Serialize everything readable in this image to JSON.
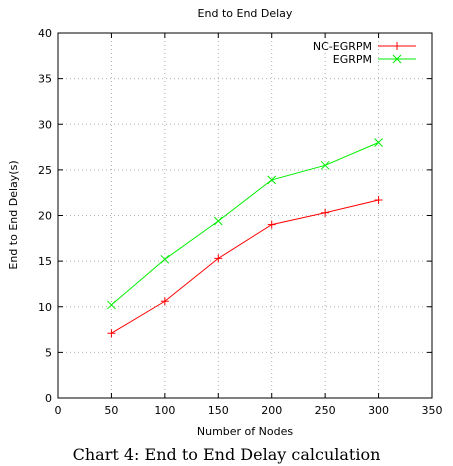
{
  "chart_data": {
    "type": "line",
    "title": "End to End Delay",
    "xlabel": "Number of Nodes",
    "ylabel": "End to End Delay(s)",
    "xlim": [
      0,
      350
    ],
    "ylim": [
      0,
      40
    ],
    "xticks": [
      0,
      50,
      100,
      150,
      200,
      250,
      300,
      350
    ],
    "yticks": [
      0,
      5,
      10,
      15,
      20,
      25,
      30,
      35,
      40
    ],
    "grid": true,
    "legend_position": "top-right",
    "x": [
      50,
      100,
      150,
      200,
      250,
      300
    ],
    "series": [
      {
        "name": "NC-EGRPM",
        "color": "#ff0000",
        "marker": "+",
        "values": [
          7.1,
          10.6,
          15.3,
          19.0,
          20.3,
          21.7
        ]
      },
      {
        "name": "EGRPM",
        "color": "#00ee00",
        "marker": "x",
        "values": [
          10.2,
          15.2,
          19.4,
          23.9,
          25.5,
          28.0
        ]
      }
    ]
  },
  "caption": "Chart 4: End to End Delay calculation"
}
